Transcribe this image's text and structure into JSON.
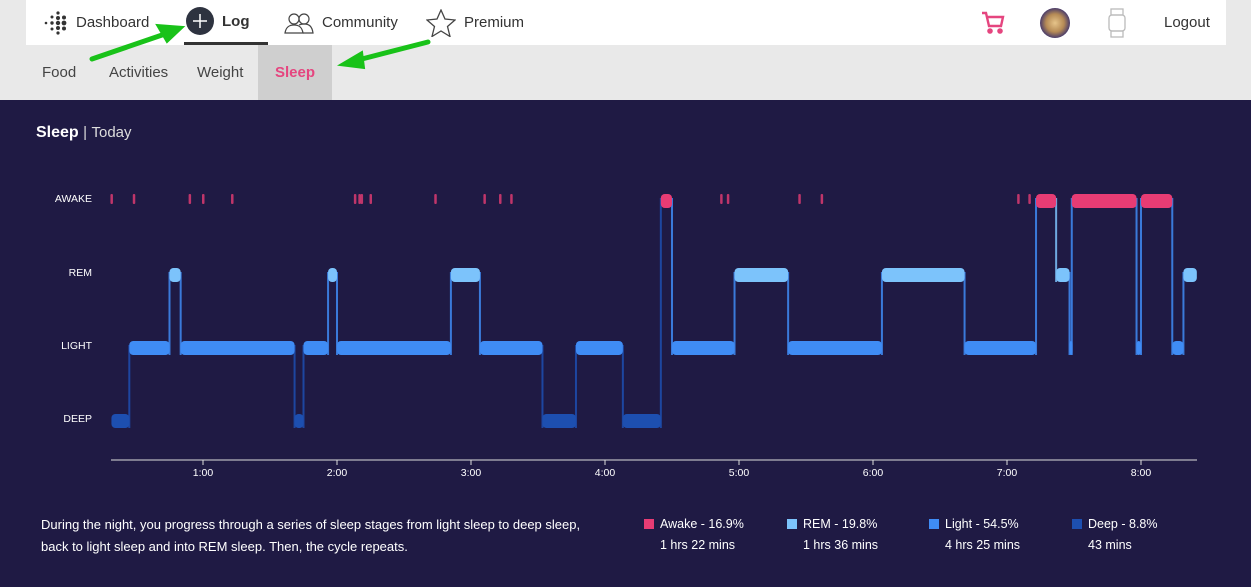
{
  "nav": {
    "dashboard": "Dashboard",
    "log": "Log",
    "community": "Community",
    "premium": "Premium",
    "logout": "Logout"
  },
  "subnav": {
    "items": [
      "Food",
      "Activities",
      "Weight",
      "Sleep"
    ],
    "active": "Sleep"
  },
  "panel": {
    "title": "Sleep",
    "separator": "|",
    "period": "Today"
  },
  "description": "During the night, you progress through a series of sleep stages from light sleep to deep sleep, back to light sleep and into REM sleep. Then, the cycle repeats.",
  "legend": [
    {
      "label": "Awake - 16.9%",
      "duration": "1 hrs 22 mins",
      "color": "#e73c74"
    },
    {
      "label": "REM - 19.8%",
      "duration": "1 hrs 36 mins",
      "color": "#7cc3fb"
    },
    {
      "label": "Light - 54.5%",
      "duration": "4 hrs 25 mins",
      "color": "#3f8cf5"
    },
    {
      "label": "Deep - 8.8%",
      "duration": "43 mins",
      "color": "#1d4fb0"
    }
  ],
  "chart_data": {
    "type": "step-area",
    "y_categories": [
      "AWAKE",
      "REM",
      "LIGHT",
      "DEEP"
    ],
    "x_ticks": [
      "1:00",
      "2:00",
      "3:00",
      "4:00",
      "5:00",
      "6:00",
      "7:00",
      "8:00"
    ],
    "x_range": [
      "0:19",
      "8:25"
    ],
    "segments": [
      [
        "0:19",
        "0:27",
        "DEEP"
      ],
      [
        "0:27",
        "0:45",
        "LIGHT"
      ],
      [
        "0:45",
        "0:50",
        "REM"
      ],
      [
        "0:50",
        "1:41",
        "LIGHT"
      ],
      [
        "1:41",
        "1:45",
        "DEEP"
      ],
      [
        "1:45",
        "1:56",
        "LIGHT"
      ],
      [
        "1:56",
        "2:00",
        "REM"
      ],
      [
        "2:00",
        "2:51",
        "LIGHT"
      ],
      [
        "2:51",
        "3:04",
        "REM"
      ],
      [
        "3:04",
        "3:32",
        "LIGHT"
      ],
      [
        "3:32",
        "3:47",
        "DEEP"
      ],
      [
        "3:47",
        "4:08",
        "LIGHT"
      ],
      [
        "4:08",
        "4:25",
        "DEEP"
      ],
      [
        "4:25",
        "4:30",
        "AWAKE"
      ],
      [
        "4:30",
        "4:58",
        "LIGHT"
      ],
      [
        "4:58",
        "5:22",
        "REM"
      ],
      [
        "5:22",
        "6:04",
        "LIGHT"
      ],
      [
        "6:04",
        "6:41",
        "REM"
      ],
      [
        "6:41",
        "7:13",
        "LIGHT"
      ],
      [
        "7:13",
        "7:22",
        "AWAKE"
      ],
      [
        "7:22",
        "7:28",
        "REM"
      ],
      [
        "7:28",
        "7:29",
        "LIGHT"
      ],
      [
        "7:29",
        "7:58",
        "AWAKE"
      ],
      [
        "7:58",
        "8:00",
        "LIGHT"
      ],
      [
        "8:00",
        "8:14",
        "AWAKE"
      ],
      [
        "8:14",
        "8:19",
        "LIGHT"
      ],
      [
        "8:19",
        "8:25",
        "REM"
      ]
    ],
    "brief_awakenings": [
      "0:19",
      "0:29",
      "0:54",
      "1:00",
      "1:13",
      "2:08",
      "2:10",
      "2:11",
      "2:15",
      "2:44",
      "3:06",
      "3:13",
      "3:18",
      "4:52",
      "4:55",
      "5:27",
      "5:37",
      "7:05",
      "7:10"
    ]
  }
}
